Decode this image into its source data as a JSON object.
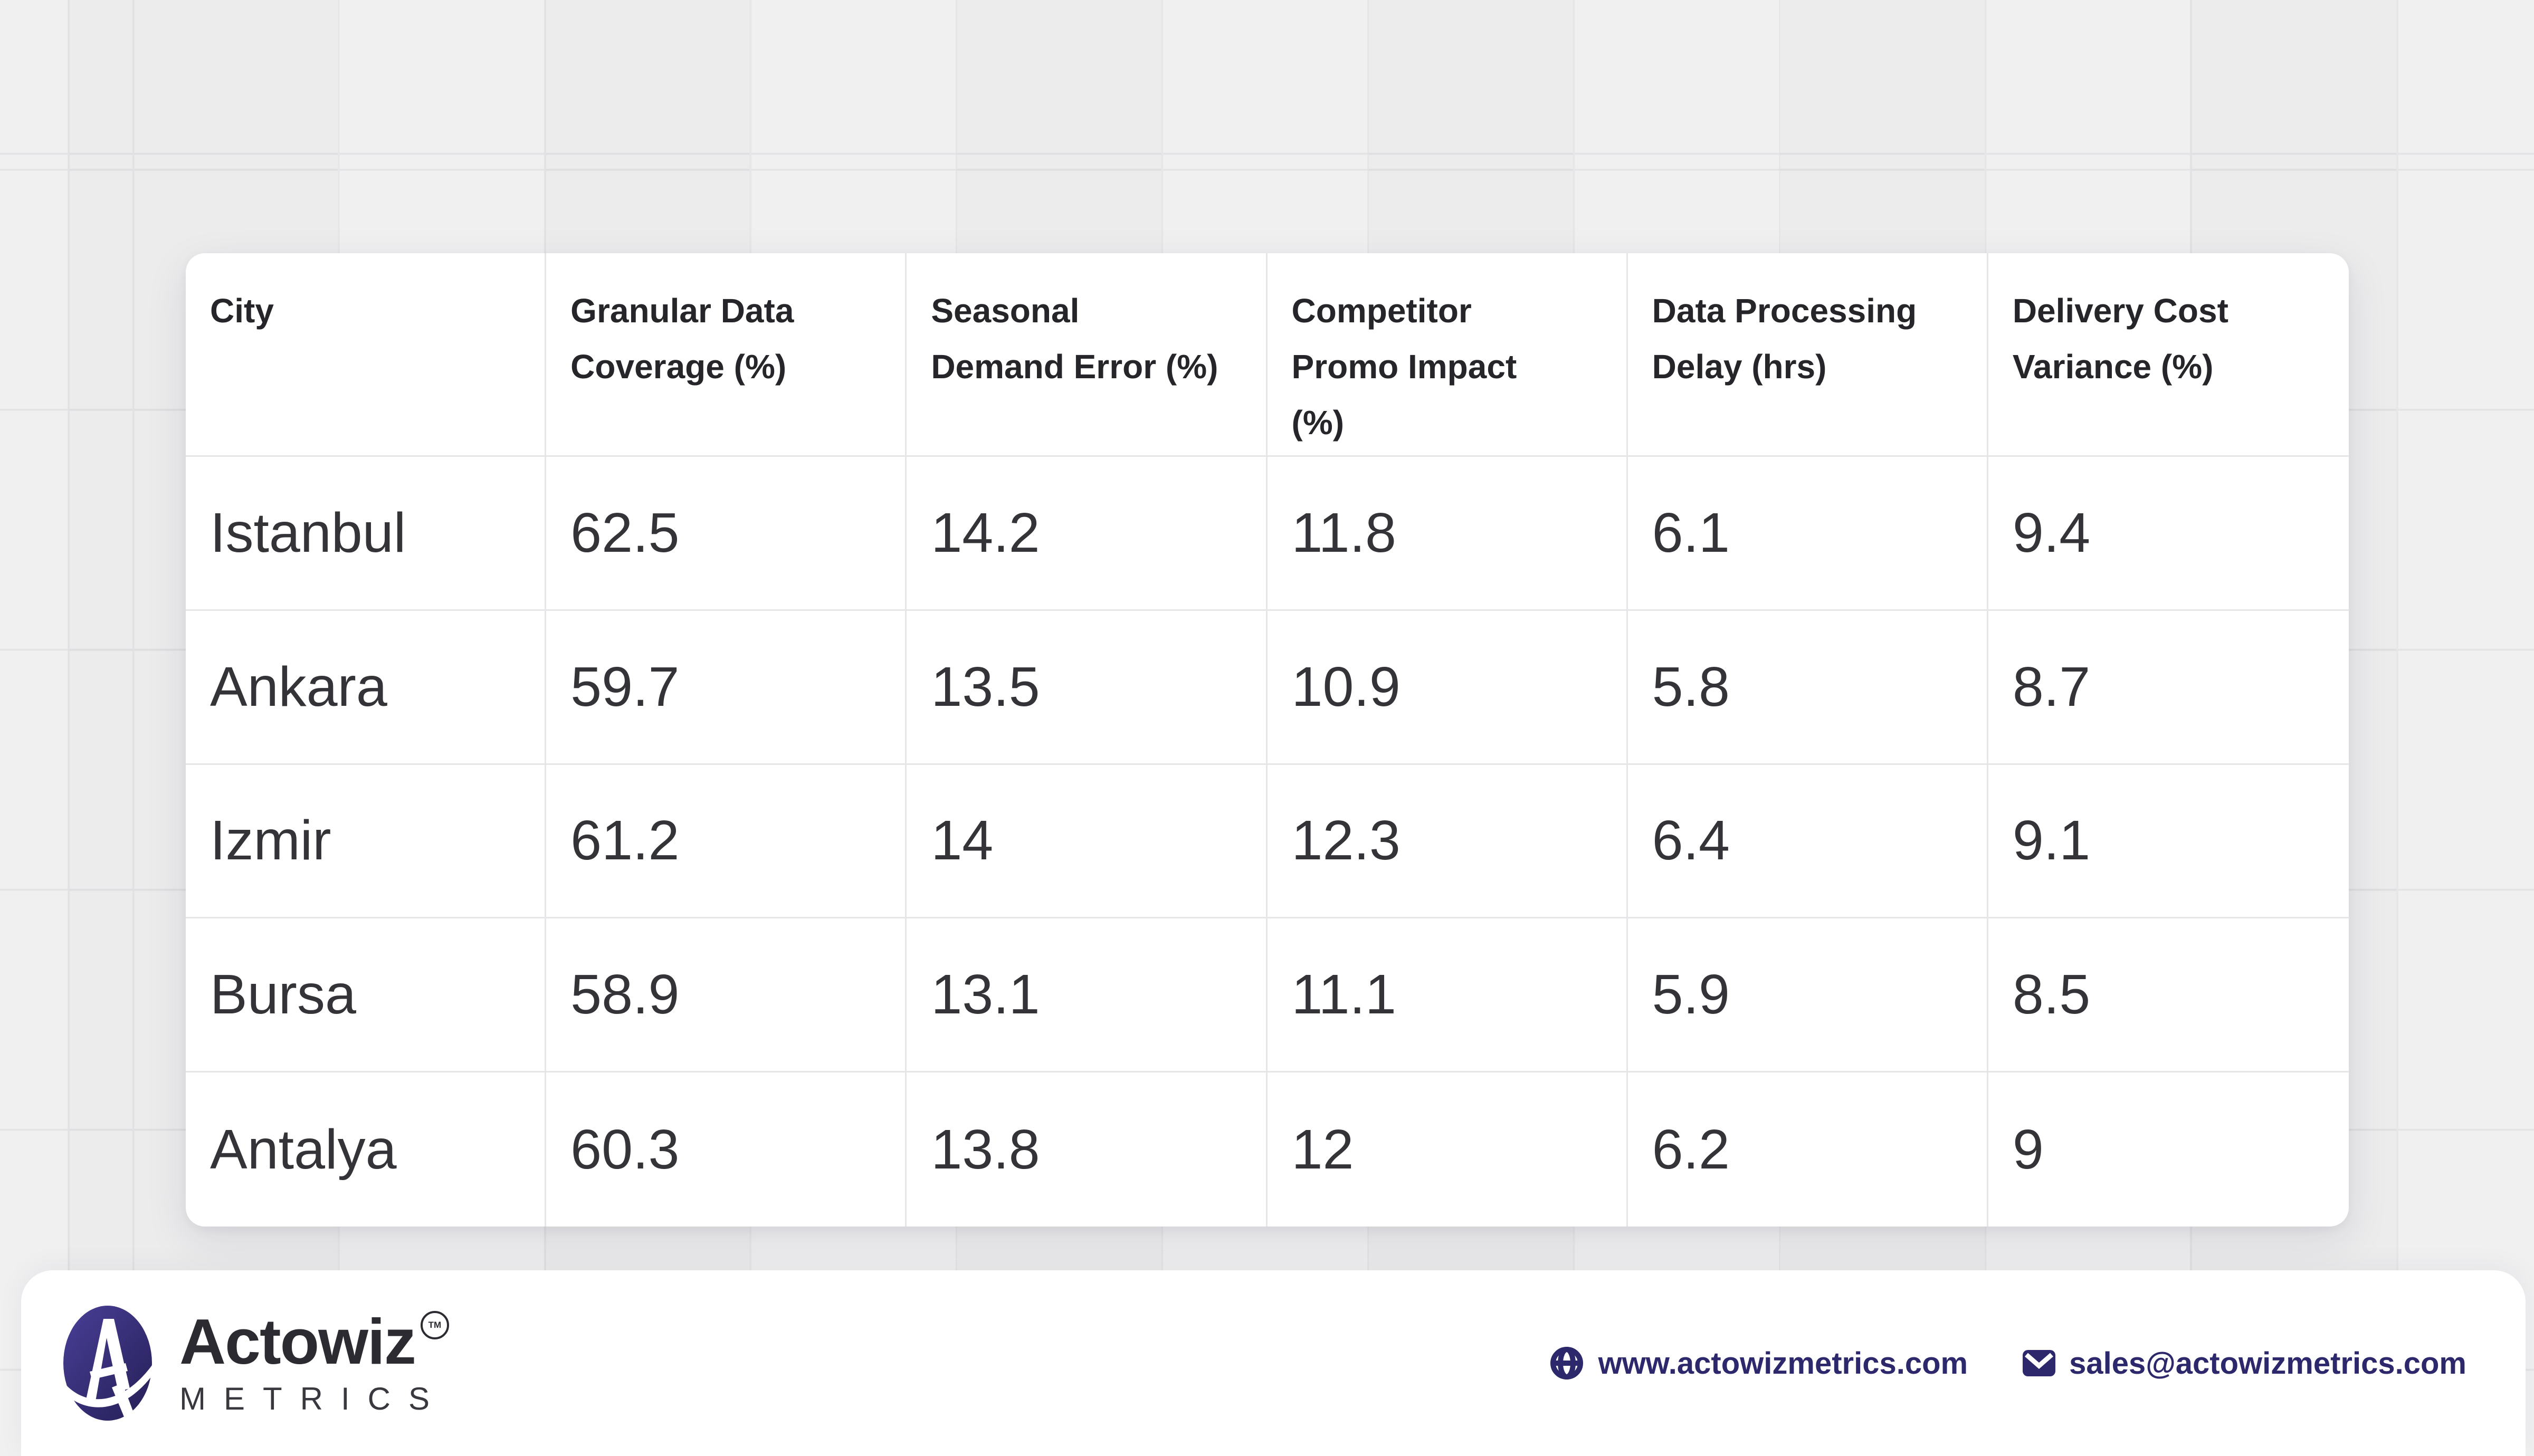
{
  "chart_data": {
    "type": "table",
    "columns": [
      "City",
      "Granular Data\nCoverage (%)",
      "Seasonal\nDemand Error (%)",
      "Competitor\nPromo Impact\n(%)",
      "Data Processing\nDelay (hrs)",
      "Delivery Cost\nVariance (%)"
    ],
    "rows": [
      [
        "Istanbul",
        "62.5",
        "14.2",
        "11.8",
        "6.1",
        "9.4"
      ],
      [
        "Ankara",
        "59.7",
        "13.5",
        "10.9",
        "5.8",
        "8.7"
      ],
      [
        "Izmir",
        "61.2",
        "14",
        "12.3",
        "6.4",
        "9.1"
      ],
      [
        "Bursa",
        "58.9",
        "13.1",
        "11.1",
        "5.9",
        "8.5"
      ],
      [
        "Antalya",
        "60.3",
        "13.8",
        "12",
        "6.2",
        "9"
      ]
    ],
    "title": "",
    "layout": "6 equal-width columns, header row + 5 data rows, light gray dividers"
  },
  "footer": {
    "brand_name": "Actowiz",
    "brand_tm": "TM",
    "brand_sub": "METRICS",
    "website": "www.actowizmetrics.com",
    "email": "sales@actowizmetrics.com"
  },
  "icons": {
    "logo": "actowiz-a-globe-logo",
    "website": "globe-icon",
    "email": "mail-envelope-icon"
  },
  "colors": {
    "page_bg": "#f0f0f1",
    "grid_line": "#e2e2e4",
    "card_bg": "#ffffff",
    "divider": "#e6e6e8",
    "header_text": "#26262a",
    "cell_text": "#333338",
    "brand_text": "#2c2b31",
    "accent_navy": "#2d286b",
    "logo_gradient_top": "#4a3f98",
    "logo_gradient_bottom": "#262058"
  }
}
